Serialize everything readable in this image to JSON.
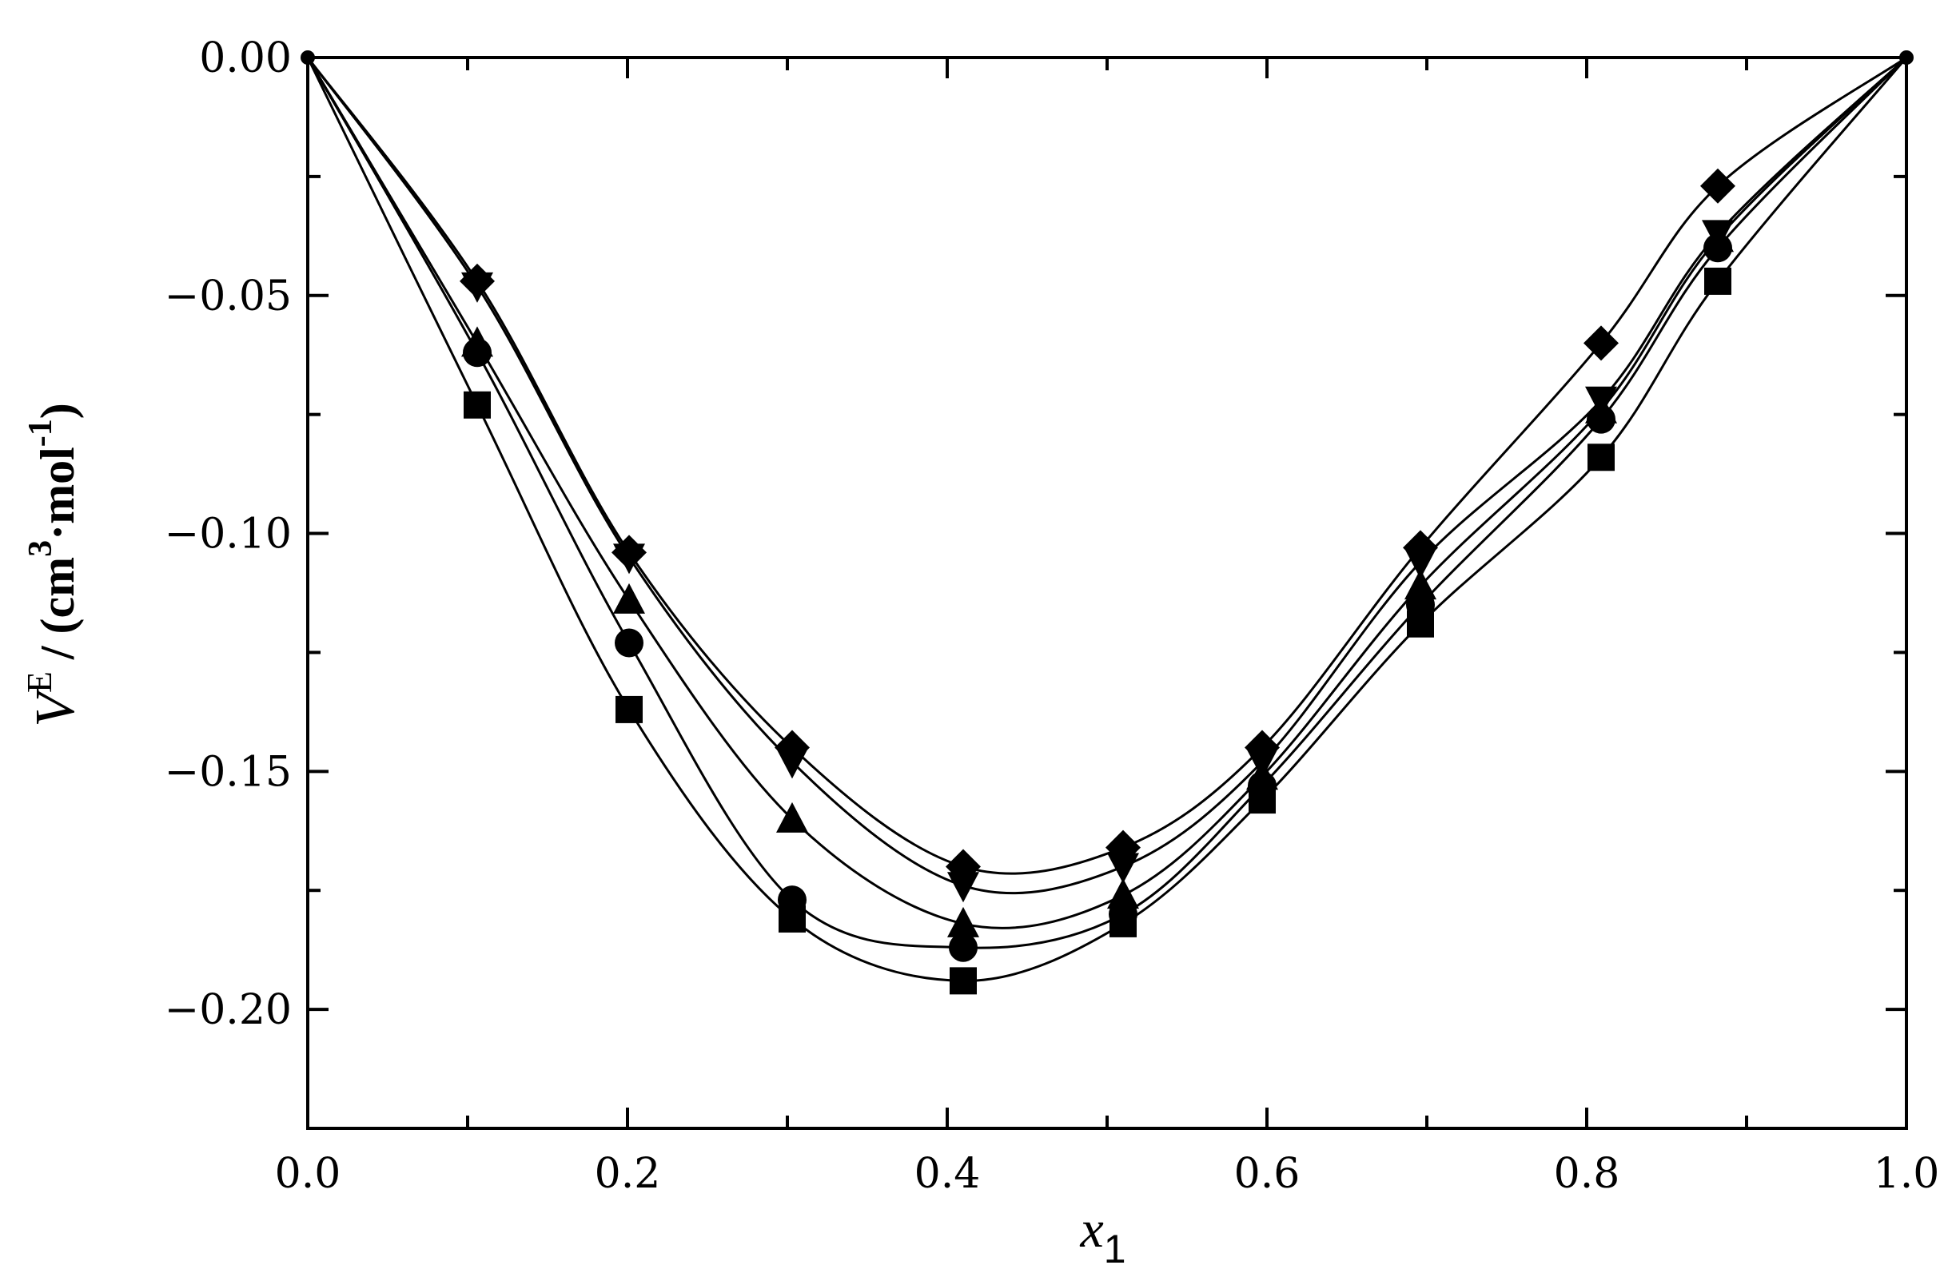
{
  "chart_data": {
    "type": "scatter",
    "xlabel": "x",
    "xlabel_sub": "1",
    "ylabel": {
      "v": "V",
      "e": "E",
      "unit_open": " / (cm",
      "unit_pow": "3",
      "dot": "·",
      "unit_mol": "mol",
      "unit_mol_pow": "-1",
      "unit_close": ")"
    },
    "xlim": [
      0.0,
      1.0
    ],
    "ylim": [
      -0.225,
      0.0
    ],
    "x_ticks": [
      "0.0",
      "0.2",
      "0.4",
      "0.6",
      "0.8",
      "1.0"
    ],
    "y_ticks": [
      "0.00",
      "-0.05",
      "-0.10",
      "-0.15",
      "-0.20"
    ],
    "grid": false,
    "legend": "none",
    "series": [
      {
        "marker": "square",
        "x": [
          0,
          0.106,
          0.201,
          0.303,
          0.41,
          0.51,
          0.597,
          0.696,
          0.809,
          0.882,
          1
        ],
        "y": [
          0,
          -0.073,
          -0.137,
          -0.181,
          -0.194,
          -0.182,
          -0.156,
          -0.119,
          -0.084,
          -0.047,
          0
        ]
      },
      {
        "marker": "circle",
        "x": [
          0,
          0.106,
          0.201,
          0.303,
          0.41,
          0.51,
          0.597,
          0.696,
          0.809,
          0.882,
          1
        ],
        "y": [
          0,
          -0.062,
          -0.123,
          -0.177,
          -0.187,
          -0.18,
          -0.153,
          -0.115,
          -0.076,
          -0.04,
          0
        ]
      },
      {
        "marker": "triangle-up",
        "x": [
          0,
          0.106,
          0.201,
          0.303,
          0.41,
          0.51,
          0.597,
          0.696,
          0.809,
          0.882,
          1
        ],
        "y": [
          0,
          -0.06,
          -0.114,
          -0.16,
          -0.182,
          -0.176,
          -0.151,
          -0.111,
          -0.074,
          -0.038,
          0
        ]
      },
      {
        "marker": "triangle-down",
        "x": [
          0,
          0.106,
          0.201,
          0.303,
          0.41,
          0.51,
          0.597,
          0.696,
          0.809,
          0.882,
          1
        ],
        "y": [
          0,
          -0.048,
          -0.105,
          -0.148,
          -0.174,
          -0.17,
          -0.148,
          -0.106,
          -0.072,
          -0.037,
          0
        ]
      },
      {
        "marker": "diamond",
        "x": [
          0,
          0.106,
          0.201,
          0.303,
          0.41,
          0.51,
          0.597,
          0.696,
          0.809,
          0.882,
          1
        ],
        "y": [
          0,
          -0.047,
          -0.104,
          -0.145,
          -0.17,
          -0.166,
          -0.145,
          -0.103,
          -0.06,
          -0.027,
          0
        ]
      }
    ]
  }
}
